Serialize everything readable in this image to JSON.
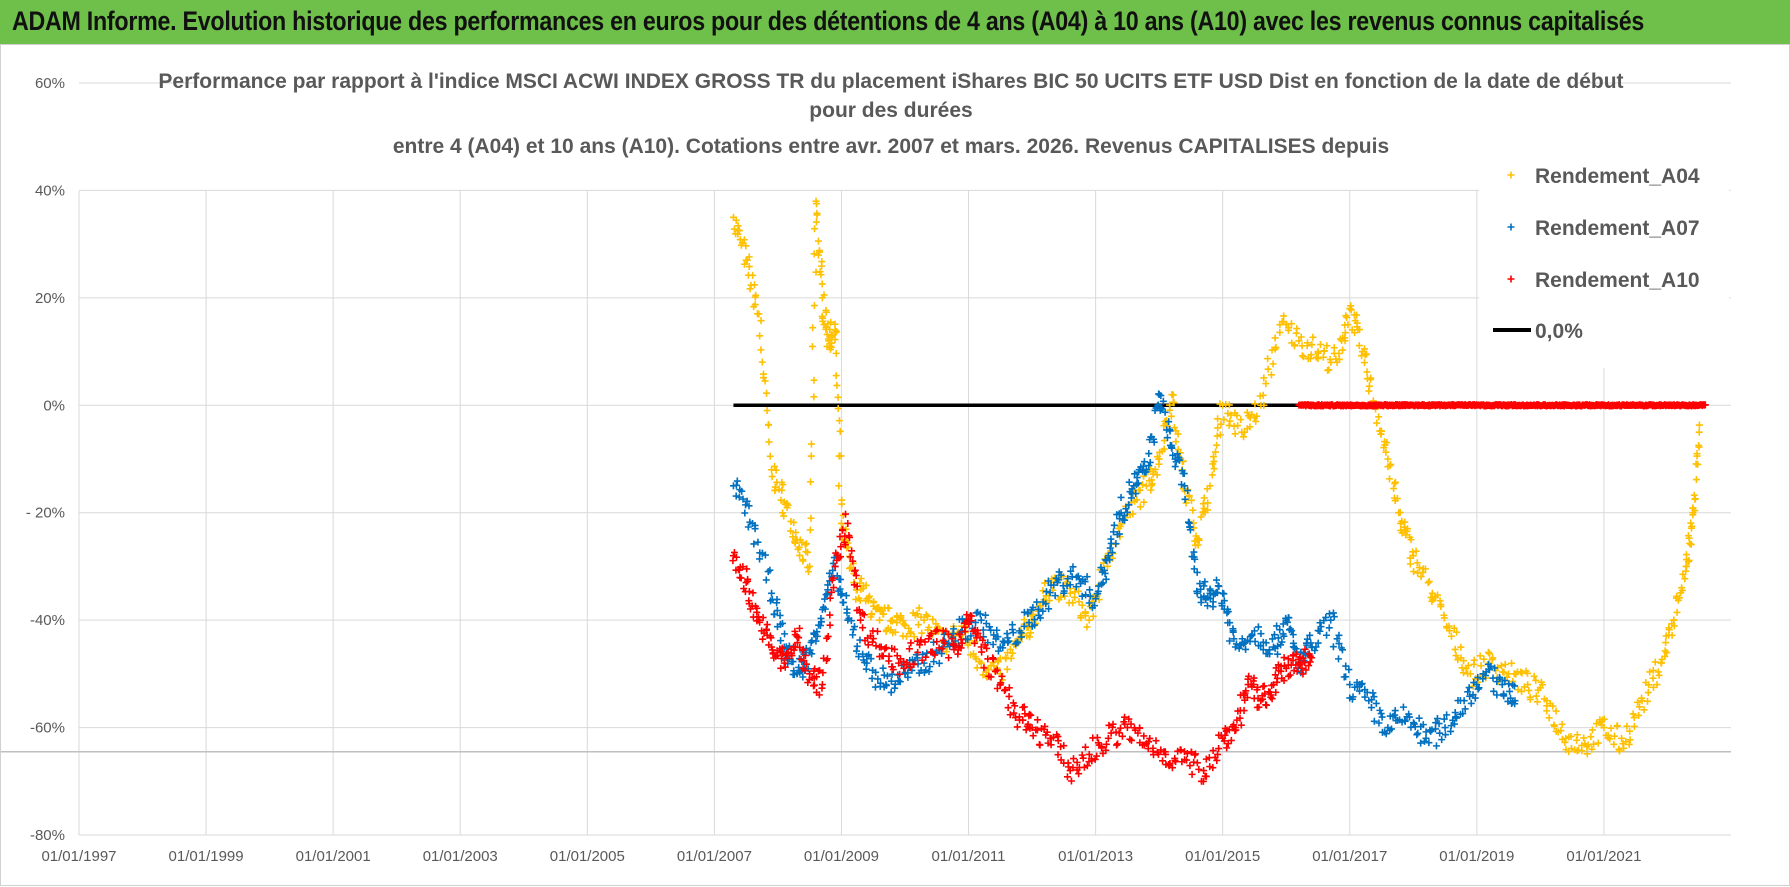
{
  "banner": {
    "title": "ADAM Informe. Evolution historique des performances en euros pour des détentions de 4 ans (A04) à 10 ans (A10) avec les revenus connus capitalisés"
  },
  "colors": {
    "banner": "#6fc04a",
    "a04": "#ffc000",
    "a07": "#0070c0",
    "a10": "#ff0000",
    "zero": "#000000",
    "grid": "#d9d9d9",
    "text": "#595959"
  },
  "chart_data": {
    "type": "scatter",
    "title": [
      "Performance par rapport à l'indice MSCI ACWI INDEX GROSS TR  du placement iShares BIC 50 UCITS ETF USD Dist en fonction de la date de début",
      "pour des durées",
      "entre 4 (A04) et 10 ans (A10). Cotations entre avr. 2007 et mars. 2026. Revenus CAPITALISES depuis"
    ],
    "xlabel": "",
    "ylabel": "",
    "x_range": [
      1997.0,
      2023.0
    ],
    "ylim": [
      -80,
      60
    ],
    "y_ticks": [
      60,
      40,
      20,
      0,
      -20,
      -40,
      -60,
      -80
    ],
    "y_tick_labels": [
      "60%",
      "40%",
      "20%",
      "0%",
      "- 20%",
      "-40%",
      "-60%",
      "-80%"
    ],
    "x_ticks": [
      1997,
      1999,
      2001,
      2003,
      2005,
      2007,
      2009,
      2011,
      2013,
      2015,
      2017,
      2019,
      2021
    ],
    "x_tick_labels": [
      "01/01/1997",
      "01/01/1999",
      "01/01/2001",
      "01/01/2003",
      "01/01/2005",
      "01/01/2007",
      "01/01/2009",
      "01/01/2011",
      "01/01/2013",
      "01/01/2015",
      "01/01/2017",
      "01/01/2019",
      "01/01/2021"
    ],
    "grid": true,
    "legend_position": "top-right",
    "legend": [
      "Rendement_A04",
      "Rendement_A07",
      "Rendement_A10",
      "0,0%"
    ],
    "series": [
      {
        "name": "Rendement_A04",
        "marker": "+",
        "x": [
          2007.3,
          2007.5,
          2007.7,
          2007.9,
          2008.1,
          2008.3,
          2008.5,
          2008.6,
          2008.7,
          2008.8,
          2008.9,
          2009.0,
          2009.2,
          2009.4,
          2009.6,
          2009.8,
          2010.0,
          2010.3,
          2010.6,
          2010.9,
          2011.2,
          2011.5,
          2011.8,
          2012.0,
          2012.3,
          2012.6,
          2012.9,
          2013.2,
          2013.5,
          2013.8,
          2014.0,
          2014.2,
          2014.4,
          2014.6,
          2014.8,
          2015.0,
          2015.3,
          2015.6,
          2015.9,
          2016.2,
          2016.5,
          2016.8,
          2017.0,
          2017.2,
          2017.4,
          2017.6,
          2017.8,
          2018.0,
          2018.3,
          2018.6,
          2018.9,
          2019.2,
          2019.5,
          2019.8,
          2020.1,
          2020.4,
          2020.7,
          2021.0,
          2021.3,
          2021.6,
          2021.9,
          2022.1,
          2022.3,
          2022.4,
          2022.5
        ],
        "y": [
          35,
          27,
          17,
          -12,
          -18,
          -25,
          -30,
          38,
          20,
          12,
          14,
          -22,
          -33,
          -36,
          -40,
          -40,
          -41,
          -40,
          -44,
          -42,
          -48,
          -50,
          -44,
          -40,
          -33,
          -35,
          -40,
          -28,
          -20,
          -15,
          -10,
          2,
          -15,
          -25,
          -15,
          0,
          -5,
          0,
          15,
          12,
          10,
          8,
          18,
          10,
          0,
          -10,
          -22,
          -28,
          -35,
          -43,
          -50,
          -48,
          -50,
          -52,
          -55,
          -62,
          -63,
          -60,
          -63,
          -55,
          -48,
          -40,
          -30,
          -20,
          -5
        ]
      },
      {
        "name": "Rendement_A07",
        "marker": "+",
        "x": [
          2007.3,
          2007.6,
          2007.9,
          2008.1,
          2008.3,
          2008.5,
          2008.7,
          2008.9,
          2009.1,
          2009.4,
          2009.7,
          2010.0,
          2010.3,
          2010.6,
          2010.9,
          2011.2,
          2011.5,
          2011.8,
          2012.1,
          2012.4,
          2012.7,
          2013.0,
          2013.2,
          2013.4,
          2013.6,
          2013.8,
          2014.0,
          2014.2,
          2014.4,
          2014.6,
          2014.8,
          2015.0,
          2015.2,
          2015.5,
          2015.8,
          2016.0,
          2016.2,
          2016.4,
          2016.7,
          2017.0,
          2017.3,
          2017.6,
          2017.9,
          2018.2,
          2018.5,
          2018.8,
          2019.1,
          2019.4,
          2019.6
        ],
        "y": [
          -15,
          -22,
          -35,
          -45,
          -50,
          -46,
          -38,
          -30,
          -40,
          -48,
          -52,
          -50,
          -48,
          -45,
          -42,
          -40,
          -45,
          -42,
          -38,
          -33,
          -32,
          -36,
          -28,
          -20,
          -15,
          -12,
          2,
          -8,
          -15,
          -35,
          -35,
          -35,
          -45,
          -42,
          -45,
          -40,
          -48,
          -45,
          -40,
          -52,
          -55,
          -60,
          -58,
          -62,
          -60,
          -55,
          -50,
          -52,
          -55
        ]
      },
      {
        "name": "Rendement_A10",
        "marker": "+",
        "x": [
          2007.3,
          2007.5,
          2007.7,
          2007.9,
          2008.1,
          2008.3,
          2008.5,
          2008.7,
          2008.9,
          2009.1,
          2009.3,
          2009.6,
          2009.9,
          2010.2,
          2010.5,
          2010.8,
          2011.0,
          2011.2,
          2011.5,
          2011.8,
          2012.0,
          2012.3,
          2012.6,
          2012.9,
          2013.2,
          2013.5,
          2013.8,
          2014.1,
          2014.4,
          2014.7,
          2015.0,
          2015.2,
          2015.4,
          2015.6,
          2015.8,
          2016.0,
          2016.2,
          2016.4
        ],
        "y": [
          -28,
          -33,
          -40,
          -45,
          -48,
          -43,
          -50,
          -52,
          -30,
          -22,
          -40,
          -45,
          -48,
          -46,
          -44,
          -45,
          -40,
          -45,
          -52,
          -58,
          -60,
          -62,
          -68,
          -65,
          -62,
          -60,
          -63,
          -65,
          -66,
          -68,
          -62,
          -60,
          -52,
          -55,
          -52,
          -49,
          -48,
          -47
        ]
      },
      {
        "name": "Rendement_A10_zero_tail",
        "marker": "+",
        "x_range": [
          2016.2,
          2022.6
        ],
        "value": 0
      },
      {
        "name": "0,0%",
        "type": "line",
        "x": [
          2007.3,
          2016.3
        ],
        "y": [
          0,
          0
        ]
      }
    ]
  }
}
